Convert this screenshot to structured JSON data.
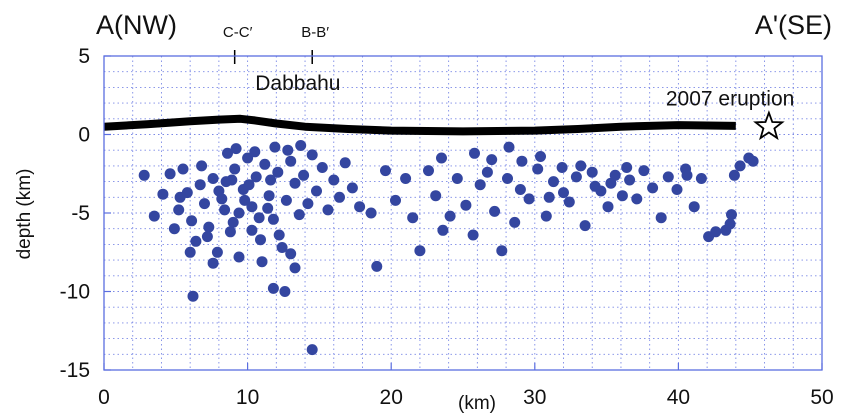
{
  "chart_data": {
    "type": "scatter",
    "xlabel": "(km)",
    "ylabel": "depth (km)",
    "xlim": [
      0,
      50
    ],
    "ylim": [
      -15,
      5
    ],
    "x_ticks": [
      "0",
      "10",
      "20",
      "30",
      "40",
      "50"
    ],
    "x_tick_values": [
      0,
      10,
      20,
      30,
      40,
      50
    ],
    "y_ticks": [
      "5",
      "0",
      "-5",
      "-10",
      "-15"
    ],
    "y_tick_values": [
      5,
      0,
      -5,
      -10,
      -15
    ],
    "grid": "dotted",
    "corner_labels": {
      "left": "A(NW)",
      "right": "A'(SE)"
    },
    "profile_markers": [
      {
        "label": "C-C′",
        "x": 9.1
      },
      {
        "label": "B-B′",
        "x": 14.5
      }
    ],
    "annotations": [
      {
        "text": "Dabbahu",
        "x": 13.5,
        "y": 2.85
      },
      {
        "text": "2007  eruption",
        "x": 43.6,
        "y": 1.85
      }
    ],
    "topography": {
      "x": [
        0,
        3,
        6,
        8,
        9.5,
        10.5,
        12,
        14,
        17,
        20,
        25,
        30,
        33,
        36,
        40,
        44
      ],
      "y": [
        0.5,
        0.65,
        0.85,
        0.95,
        1.0,
        0.9,
        0.7,
        0.5,
        0.35,
        0.25,
        0.2,
        0.25,
        0.35,
        0.5,
        0.6,
        0.55
      ]
    },
    "eruption_marker": {
      "symbol": "star",
      "x": 46.3,
      "y": 0.5
    },
    "series": [
      {
        "color": "#3446a0",
        "points": [
          [
            2.8,
            -2.6
          ],
          [
            3.5,
            -5.2
          ],
          [
            4.1,
            -3.8
          ],
          [
            4.6,
            -2.5
          ],
          [
            4.9,
            -6.0
          ],
          [
            5.2,
            -4.8
          ],
          [
            5.5,
            -2.2
          ],
          [
            5.8,
            -3.7
          ],
          [
            6.1,
            -5.5
          ],
          [
            6.4,
            -6.8
          ],
          [
            6.7,
            -3.2
          ],
          [
            7.0,
            -4.4
          ],
          [
            7.3,
            -5.9
          ],
          [
            7.6,
            -2.8
          ],
          [
            7.9,
            -7.5
          ],
          [
            8.2,
            -4.1
          ],
          [
            8.5,
            -3.0
          ],
          [
            8.8,
            -6.2
          ],
          [
            9.1,
            -2.2
          ],
          [
            9.4,
            -5.0
          ],
          [
            9.7,
            -3.5
          ],
          [
            10.0,
            -1.5
          ],
          [
            10.3,
            -4.6
          ],
          [
            10.6,
            -2.7
          ],
          [
            10.9,
            -6.7
          ],
          [
            11.2,
            -1.9
          ],
          [
            11.5,
            -3.9
          ],
          [
            11.8,
            -5.4
          ],
          [
            12.1,
            -2.4
          ],
          [
            12.4,
            -7.2
          ],
          [
            12.7,
            -4.2
          ],
          [
            13.0,
            -1.7
          ],
          [
            13.3,
            -3.1
          ],
          [
            13.6,
            -5.1
          ],
          [
            13.9,
            -2.6
          ],
          [
            14.2,
            -4.4
          ],
          [
            14.5,
            -1.3
          ],
          [
            14.8,
            -3.6
          ],
          [
            15.2,
            -2.1
          ],
          [
            15.6,
            -4.8
          ],
          [
            16.0,
            -2.9
          ],
          [
            16.4,
            -4.0
          ],
          [
            16.8,
            -1.8
          ],
          [
            17.3,
            -3.4
          ],
          [
            17.8,
            -4.6
          ],
          [
            9.2,
            -0.9
          ],
          [
            10.5,
            -1.1
          ],
          [
            11.9,
            -0.8
          ],
          [
            12.8,
            -1.0
          ],
          [
            13.7,
            -0.7
          ],
          [
            8.6,
            -1.2
          ],
          [
            6.0,
            -7.5
          ],
          [
            6.2,
            -10.3
          ],
          [
            7.6,
            -8.2
          ],
          [
            9.4,
            -7.8
          ],
          [
            10.3,
            -6.1
          ],
          [
            11.0,
            -8.1
          ],
          [
            11.8,
            -9.8
          ],
          [
            12.6,
            -10.0
          ],
          [
            13.0,
            -7.6
          ],
          [
            13.3,
            -8.5
          ],
          [
            12.2,
            -6.4
          ],
          [
            14.5,
            -13.7
          ],
          [
            8.0,
            -3.6
          ],
          [
            8.4,
            -4.8
          ],
          [
            9.0,
            -5.6
          ],
          [
            9.8,
            -4.2
          ],
          [
            10.8,
            -5.3
          ],
          [
            11.4,
            -4.7
          ],
          [
            5.3,
            -4.0
          ],
          [
            6.8,
            -2.0
          ],
          [
            7.2,
            -6.5
          ],
          [
            8.9,
            -2.9
          ],
          [
            10.1,
            -3.2
          ],
          [
            11.6,
            -2.9
          ],
          [
            19.0,
            -8.4
          ],
          [
            18.6,
            -5.0
          ],
          [
            19.6,
            -2.3
          ],
          [
            20.3,
            -4.2
          ],
          [
            21.0,
            -2.8
          ],
          [
            21.5,
            -5.3
          ],
          [
            22.0,
            -7.4
          ],
          [
            22.6,
            -2.3
          ],
          [
            23.1,
            -3.9
          ],
          [
            23.6,
            -6.1
          ],
          [
            24.1,
            -5.2
          ],
          [
            24.6,
            -2.8
          ],
          [
            25.2,
            -4.5
          ],
          [
            25.7,
            -6.4
          ],
          [
            26.2,
            -3.2
          ],
          [
            26.7,
            -2.4
          ],
          [
            27.2,
            -4.9
          ],
          [
            27.7,
            -7.4
          ],
          [
            28.1,
            -2.8
          ],
          [
            28.6,
            -5.6
          ],
          [
            29.0,
            -3.5
          ],
          [
            29.6,
            -4.1
          ],
          [
            30.2,
            -2.2
          ],
          [
            30.8,
            -5.2
          ],
          [
            31.3,
            -3.0
          ],
          [
            31.9,
            -2.1
          ],
          [
            32.4,
            -4.3
          ],
          [
            32.9,
            -2.7
          ],
          [
            33.5,
            -5.8
          ],
          [
            34.0,
            -2.4
          ],
          [
            34.6,
            -3.6
          ],
          [
            35.1,
            -4.6
          ],
          [
            35.6,
            -2.6
          ],
          [
            36.1,
            -3.9
          ],
          [
            36.6,
            -2.9
          ],
          [
            37.1,
            -4.1
          ],
          [
            25.8,
            -1.2
          ],
          [
            28.2,
            -0.8
          ],
          [
            30.4,
            -1.4
          ],
          [
            27.0,
            -1.6
          ],
          [
            23.5,
            -1.5
          ],
          [
            29.1,
            -1.7
          ],
          [
            37.6,
            -2.3
          ],
          [
            38.2,
            -3.4
          ],
          [
            38.8,
            -5.3
          ],
          [
            39.3,
            -2.7
          ],
          [
            39.9,
            -3.5
          ],
          [
            40.5,
            -2.2
          ],
          [
            41.1,
            -4.6
          ],
          [
            41.6,
            -2.8
          ],
          [
            42.1,
            -6.5
          ],
          [
            42.6,
            -6.2
          ],
          [
            43.3,
            -6.1
          ],
          [
            43.6,
            -5.7
          ],
          [
            43.7,
            -5.1
          ],
          [
            43.9,
            -2.6
          ],
          [
            44.3,
            -2.0
          ],
          [
            44.9,
            -1.5
          ],
          [
            45.2,
            -1.7
          ],
          [
            40.6,
            -2.6
          ],
          [
            36.4,
            -2.1
          ],
          [
            35.3,
            -3.1
          ],
          [
            34.2,
            -3.3
          ],
          [
            33.2,
            -2.0
          ],
          [
            32.0,
            -3.7
          ],
          [
            31.0,
            -4.0
          ]
        ]
      }
    ]
  }
}
